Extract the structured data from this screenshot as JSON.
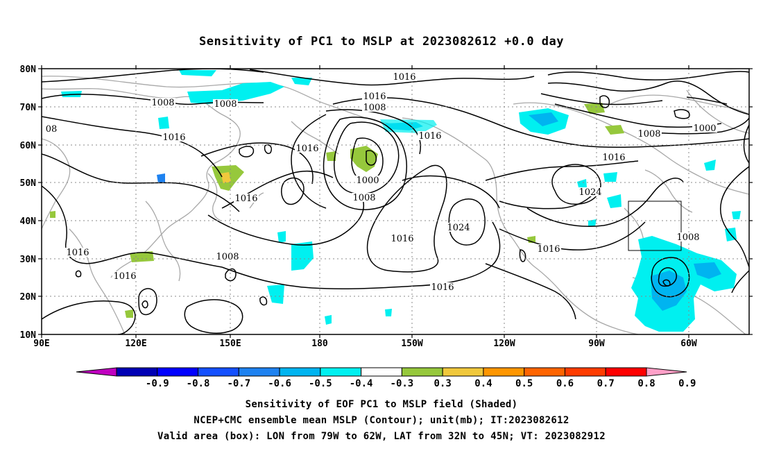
{
  "title": "Sensitivity of PC1 to MSLP at 2023082612 +0.0 day",
  "lat_labels": [
    "80N",
    "70N",
    "60N",
    "50N",
    "40N",
    "30N",
    "20N",
    "10N"
  ],
  "lon_labels": [
    "90E",
    "120E",
    "150E",
    "180",
    "150W",
    "120W",
    "90W",
    "60W"
  ],
  "contour_labels": [
    "1016",
    "1016",
    "1008",
    "1008",
    "1008",
    "08",
    "1016",
    "1016",
    "1016",
    "1000",
    "1008",
    "1016",
    "1016",
    "1024",
    "1000",
    "1008",
    "1016",
    "1024",
    "1016",
    "1016",
    "1016",
    "1008",
    "1008",
    "1016"
  ],
  "colorbar": {
    "labels": [
      "-0.9",
      "-0.8",
      "-0.7",
      "-0.6",
      "-0.5",
      "-0.4",
      "-0.3",
      "0.3",
      "0.4",
      "0.5",
      "0.6",
      "0.7",
      "0.8",
      "0.9"
    ],
    "colors": [
      "#c000c0",
      "#0000b4",
      "#0000ff",
      "#1450ff",
      "#1e82f0",
      "#00b4f0",
      "#00f0f0",
      "#ffffff",
      "#96c83c",
      "#f0c83c",
      "#ff9600",
      "#ff6400",
      "#ff3c00",
      "#ff0000",
      "#ffa0c8"
    ]
  },
  "footer": {
    "line1": "Sensitivity of EOF PC1 to MSLP field (Shaded)",
    "line2": "NCEP+CMC ensemble mean MSLP (Contour); unit(mb); IT:2023082612",
    "line3": "Valid area (box): LON from 79W to 62W, LAT from 32N to 45N; VT: 2023082912"
  }
}
